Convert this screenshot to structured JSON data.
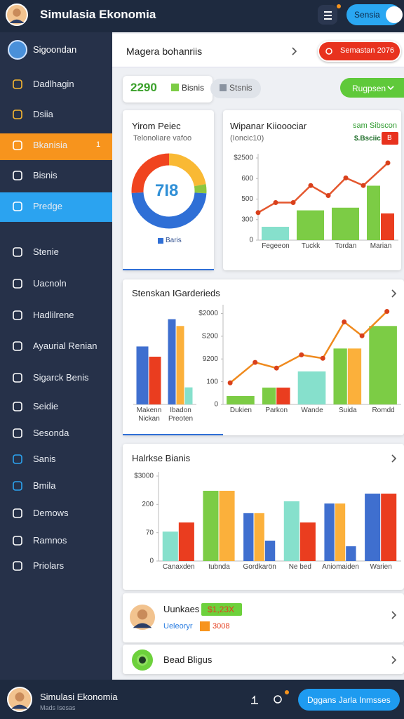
{
  "header": {
    "title": "Simulasia Ekonomia",
    "button": "Sensia"
  },
  "sidebar": {
    "user": "Sigoondan",
    "items": [
      "Dadlhagin",
      "Dsiia",
      "Bkanisia",
      "Bisnis",
      "Predge",
      "Stenie",
      "Uacnoln",
      "Hadlilrene",
      "Ayaurial Renian",
      "Sigarck Benis",
      "Seidie",
      "Sesonda",
      "Sanis",
      "Bmila",
      "Demows",
      "Ramnos",
      "Priolars"
    ],
    "badge": "1"
  },
  "topbar": {
    "title": "Magera bohanriis",
    "alert": "Semastan 2076"
  },
  "stats": {
    "value": "2290",
    "tab1": "Bisnis",
    "tab2": "Stsnis",
    "button": "Rugpsen"
  },
  "chart_data": [
    {
      "type": "pie",
      "title": "Yirom Peiec",
      "subtitle": "Telonoliare vafoo",
      "center_label": "7I8",
      "legend": "Baris",
      "values": [
        22,
        4,
        48,
        26
      ],
      "colors": [
        "#f9b934",
        "#8dc63f",
        "#2f6fd6",
        "#f0441f"
      ]
    },
    {
      "type": "combo",
      "title": "Wipanar Kiiooociar",
      "subtitle": "(Ioncic10)",
      "annotations": [
        "sam Sibscon",
        "$.Bsciic",
        "B"
      ],
      "categories": [
        "Fegeeon",
        "Tuckk",
        "Tordan",
        "Marian"
      ],
      "ylim": [
        0,
        400
      ],
      "yticks": [
        0,
        {
          "value": 100,
          "label": "300"
        },
        {
          "value": 200,
          "label": "500"
        },
        {
          "value": 300,
          "label": "600"
        },
        {
          "value": 400,
          "label": "$2500"
        }
      ],
      "series": [
        {
          "type": "bar",
          "color": "#7ccc45",
          "colors": [
            "#86e0cc",
            "#7ccc45",
            "#7ccc45",
            "#7ccc45"
          ],
          "values": [
            65,
            145,
            158,
            265
          ]
        },
        {
          "type": "bar",
          "color": "#ea3d1f",
          "values": [
            null,
            null,
            null,
            130
          ]
        },
        {
          "type": "line",
          "color": "#e4572e",
          "x": [
            -0.5,
            0,
            0.5,
            1,
            1.5,
            2,
            2.5,
            3.2
          ],
          "values": [
            134,
            183,
            183,
            266,
            217,
            303,
            266,
            376
          ]
        }
      ]
    },
    {
      "type": "bar",
      "title": "Stenskan IGarderieds",
      "categories": [
        "Makenn\nNickan",
        "Ibadon\nPreoten"
      ],
      "ylim": [
        0,
        140
      ],
      "series": [
        {
          "type": "bar",
          "color": "#3f6fcf",
          "values": [
            85,
            125
          ]
        },
        {
          "type": "bar",
          "color": "#ea3d1f",
          "colors": [
            "#ea3d1f",
            "#fbb03b"
          ],
          "values": [
            70,
            115
          ]
        },
        {
          "type": "bar",
          "color": "#86e0cc",
          "values": [
            null,
            25
          ]
        }
      ]
    },
    {
      "type": "combo",
      "categories": [
        "Dukien",
        "Parkon",
        "Wande",
        "Suida",
        "Romdd"
      ],
      "ylim": [
        0,
        420
      ],
      "yticks": [
        0,
        100,
        {
          "value": 200,
          "label": "9200"
        },
        {
          "value": 300,
          "label": "S200"
        },
        {
          "value": 400,
          "label": "$2000"
        }
      ],
      "series": [
        {
          "type": "bar",
          "color": "#7ccc45",
          "colors": [
            "#7ccc45",
            "#7ccc45",
            "#86e0cc",
            "#7ccc45",
            "#7ccc45"
          ],
          "values": [
            37,
            74,
            145,
            246,
            345
          ]
        },
        {
          "type": "bar",
          "color": "#ea3d1f",
          "colors": [
            "#ea3d1f",
            "#ea3d1f",
            "#ea3d1f",
            "#fbb03b",
            "#ea3d1f"
          ],
          "values": [
            null,
            74,
            null,
            246,
            null
          ]
        },
        {
          "type": "line",
          "color": "#ef8a1e",
          "x": [
            -0.3,
            0.4,
            1,
            1.7,
            2.3,
            2.9,
            3.4,
            4.1
          ],
          "values": [
            95,
            185,
            160,
            218,
            203,
            363,
            302,
            409
          ]
        }
      ]
    },
    {
      "type": "bar",
      "title": "Halrkse Bianis",
      "categories": [
        "Canaxden",
        "tubnda",
        "Gordkarön",
        "Ne bed",
        "Aniomaiden",
        "Warien"
      ],
      "ylim": [
        0,
        300
      ],
      "yticks": [
        0,
        {
          "value": 100,
          "label": "70"
        },
        200,
        {
          "value": 300,
          "label": "$3000"
        }
      ],
      "series": [
        {
          "type": "bar",
          "color": "#3f6fcf",
          "colors": [
            "#86e0cc",
            "#7ccc45",
            "#3f6fcf",
            "#86e0cc",
            "#3f6fcf",
            "#3f6fcf"
          ],
          "values": [
            104,
            248,
            169,
            211,
            203,
            238
          ]
        },
        {
          "type": "bar",
          "color": "#ea3d1f",
          "colors": [
            "#ea3d1f",
            "#fbb03b",
            "#fbb03b",
            "#ea3d1f",
            "#fbb03b",
            "#ea3d1f"
          ],
          "values": [
            136,
            248,
            169,
            136,
            203,
            238
          ]
        },
        {
          "type": "bar",
          "color": "#3f6fcf",
          "values": [
            null,
            null,
            72,
            null,
            52,
            null
          ]
        }
      ]
    }
  ],
  "profile": {
    "name": "Uunkaes",
    "badge": "$1,23X",
    "role": "Ueleoryr",
    "count": "3008"
  },
  "link": {
    "label": "Bead Bligus"
  },
  "footer": {
    "title": "Simulasi Ekonomia",
    "subtitle": "Mads Isesas",
    "button": "Dggans Jarla Inmsses"
  }
}
